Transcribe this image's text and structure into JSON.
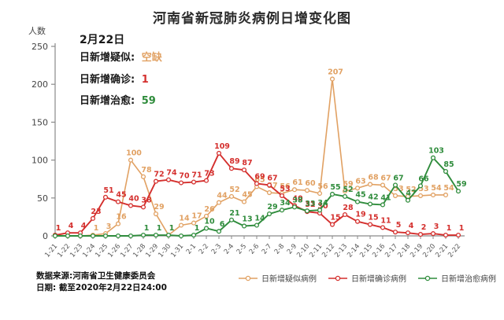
{
  "title": "河南省新冠肺炎病例日增变化图",
  "date_label": "2月22日",
  "info": {
    "suspected": {
      "label": "日新增疑似:",
      "value": "空缺"
    },
    "confirmed": {
      "label": "日新增确诊:",
      "value": "1"
    },
    "cured": {
      "label": "日新增治愈:",
      "value": "59"
    }
  },
  "y_axis_label": "人数",
  "source_line1": "数据来源:河南省卫生健康委员会",
  "source_line2": "日期: 截至2020年2月22日24:00",
  "colors": {
    "suspected": "#E1A163",
    "confirmed": "#D42F2D",
    "cured": "#2F8C3C",
    "axis": "#8a8a8a",
    "tick_text": "#555"
  },
  "chart_data": {
    "type": "line",
    "title": "河南省新冠肺炎病例日增变化图",
    "xlabel": "",
    "ylabel": "人数",
    "ylim": [
      0,
      250
    ],
    "yticks": [
      0,
      50,
      100,
      150,
      200,
      250
    ],
    "grid": false,
    "legend_position": "bottom-right",
    "categories": [
      "1-21",
      "1-22",
      "1-23",
      "1-24",
      "1-25",
      "1-26",
      "1-27",
      "1-28",
      "1-29",
      "1-30",
      "1-31",
      "2-1",
      "2-2",
      "2-3",
      "2-4",
      "2-5",
      "2-6",
      "2-7",
      "2-8",
      "2-9",
      "2-10",
      "2-11",
      "2-12",
      "2-13",
      "2-14",
      "2-15",
      "2-16",
      "2-17",
      "2-18",
      "2-19",
      "2-20",
      "2-21",
      "2-22"
    ],
    "series": [
      {
        "name": "日新增疑似病例",
        "key": "suspected",
        "values": [
          1,
          0,
          0,
          1,
          3,
          16,
          100,
          78,
          29,
          1,
          14,
          17,
          26,
          44,
          52,
          45,
          65,
          57,
          56,
          61,
          60,
          56,
          207,
          59,
          63,
          68,
          67,
          53,
          52,
          53,
          54,
          54,
          null
        ]
      },
      {
        "name": "日新增确诊病例",
        "key": "confirmed",
        "values": [
          1,
          4,
          4,
          23,
          51,
          45,
          40,
          38,
          72,
          74,
          70,
          71,
          73,
          109,
          89,
          87,
          69,
          67,
          53,
          40,
          32,
          30,
          15,
          28,
          19,
          15,
          11,
          5,
          4,
          2,
          3,
          1,
          1
        ]
      },
      {
        "name": "日新增治愈病例",
        "key": "cured",
        "values": [
          0,
          0,
          0,
          0,
          0,
          0,
          0,
          1,
          1,
          1,
          0,
          1,
          10,
          6,
          21,
          13,
          14,
          29,
          34,
          38,
          33,
          34,
          55,
          52,
          45,
          42,
          41,
          67,
          47,
          66,
          103,
          85,
          59
        ]
      }
    ]
  }
}
